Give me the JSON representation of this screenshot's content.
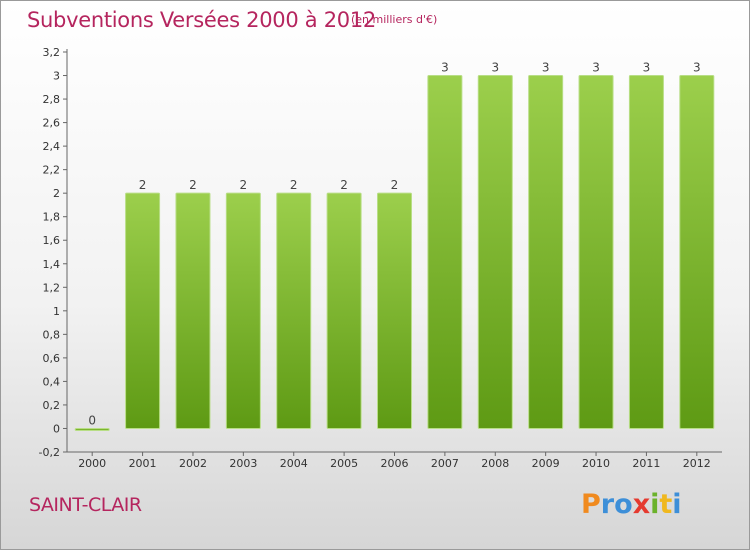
{
  "title": "Subventions Versées 2000 à 2012",
  "subtitle": "(en milliers d'€)",
  "place": "SAINT-CLAIR",
  "logo": {
    "letters": [
      "P",
      "r",
      "o",
      "x",
      "i",
      "t",
      "i"
    ],
    "colors": [
      "#f08a1e",
      "#3d8fd8",
      "#3d8fd8",
      "#e53a2f",
      "#6bb22b",
      "#f0b81e",
      "#3d8fd8"
    ]
  },
  "chart_data": {
    "type": "bar",
    "categories": [
      "2000",
      "2001",
      "2002",
      "2003",
      "2004",
      "2005",
      "2006",
      "2007",
      "2008",
      "2009",
      "2010",
      "2011",
      "2012"
    ],
    "values": [
      0,
      2,
      2,
      2,
      2,
      2,
      2,
      3,
      3,
      3,
      3,
      3,
      3
    ],
    "value_labels": [
      "0",
      "2",
      "2",
      "2",
      "2",
      "2",
      "2",
      "3",
      "3",
      "3",
      "3",
      "3",
      "3"
    ],
    "ylim": [
      -0.2,
      3.2
    ],
    "yticks": [
      -0.2,
      0,
      0.2,
      0.4,
      0.6,
      0.8,
      1,
      1.2,
      1.4,
      1.6,
      1.8,
      2,
      2.2,
      2.4,
      2.6,
      2.8,
      3,
      3.2
    ],
    "ytick_labels": [
      "-0,2",
      "0",
      "0,2",
      "0,4",
      "0,6",
      "0,8",
      "1",
      "1,2",
      "1,4",
      "1,6",
      "1,8",
      "2",
      "2,2",
      "2,4",
      "2,6",
      "2,8",
      "3",
      "3,2"
    ],
    "title": "Subventions Versées 2000 à 2012",
    "grid": false,
    "bar_color_top": "#9ccf4c",
    "bar_color_bottom": "#5e9a14",
    "title_color": "#b5255e"
  }
}
